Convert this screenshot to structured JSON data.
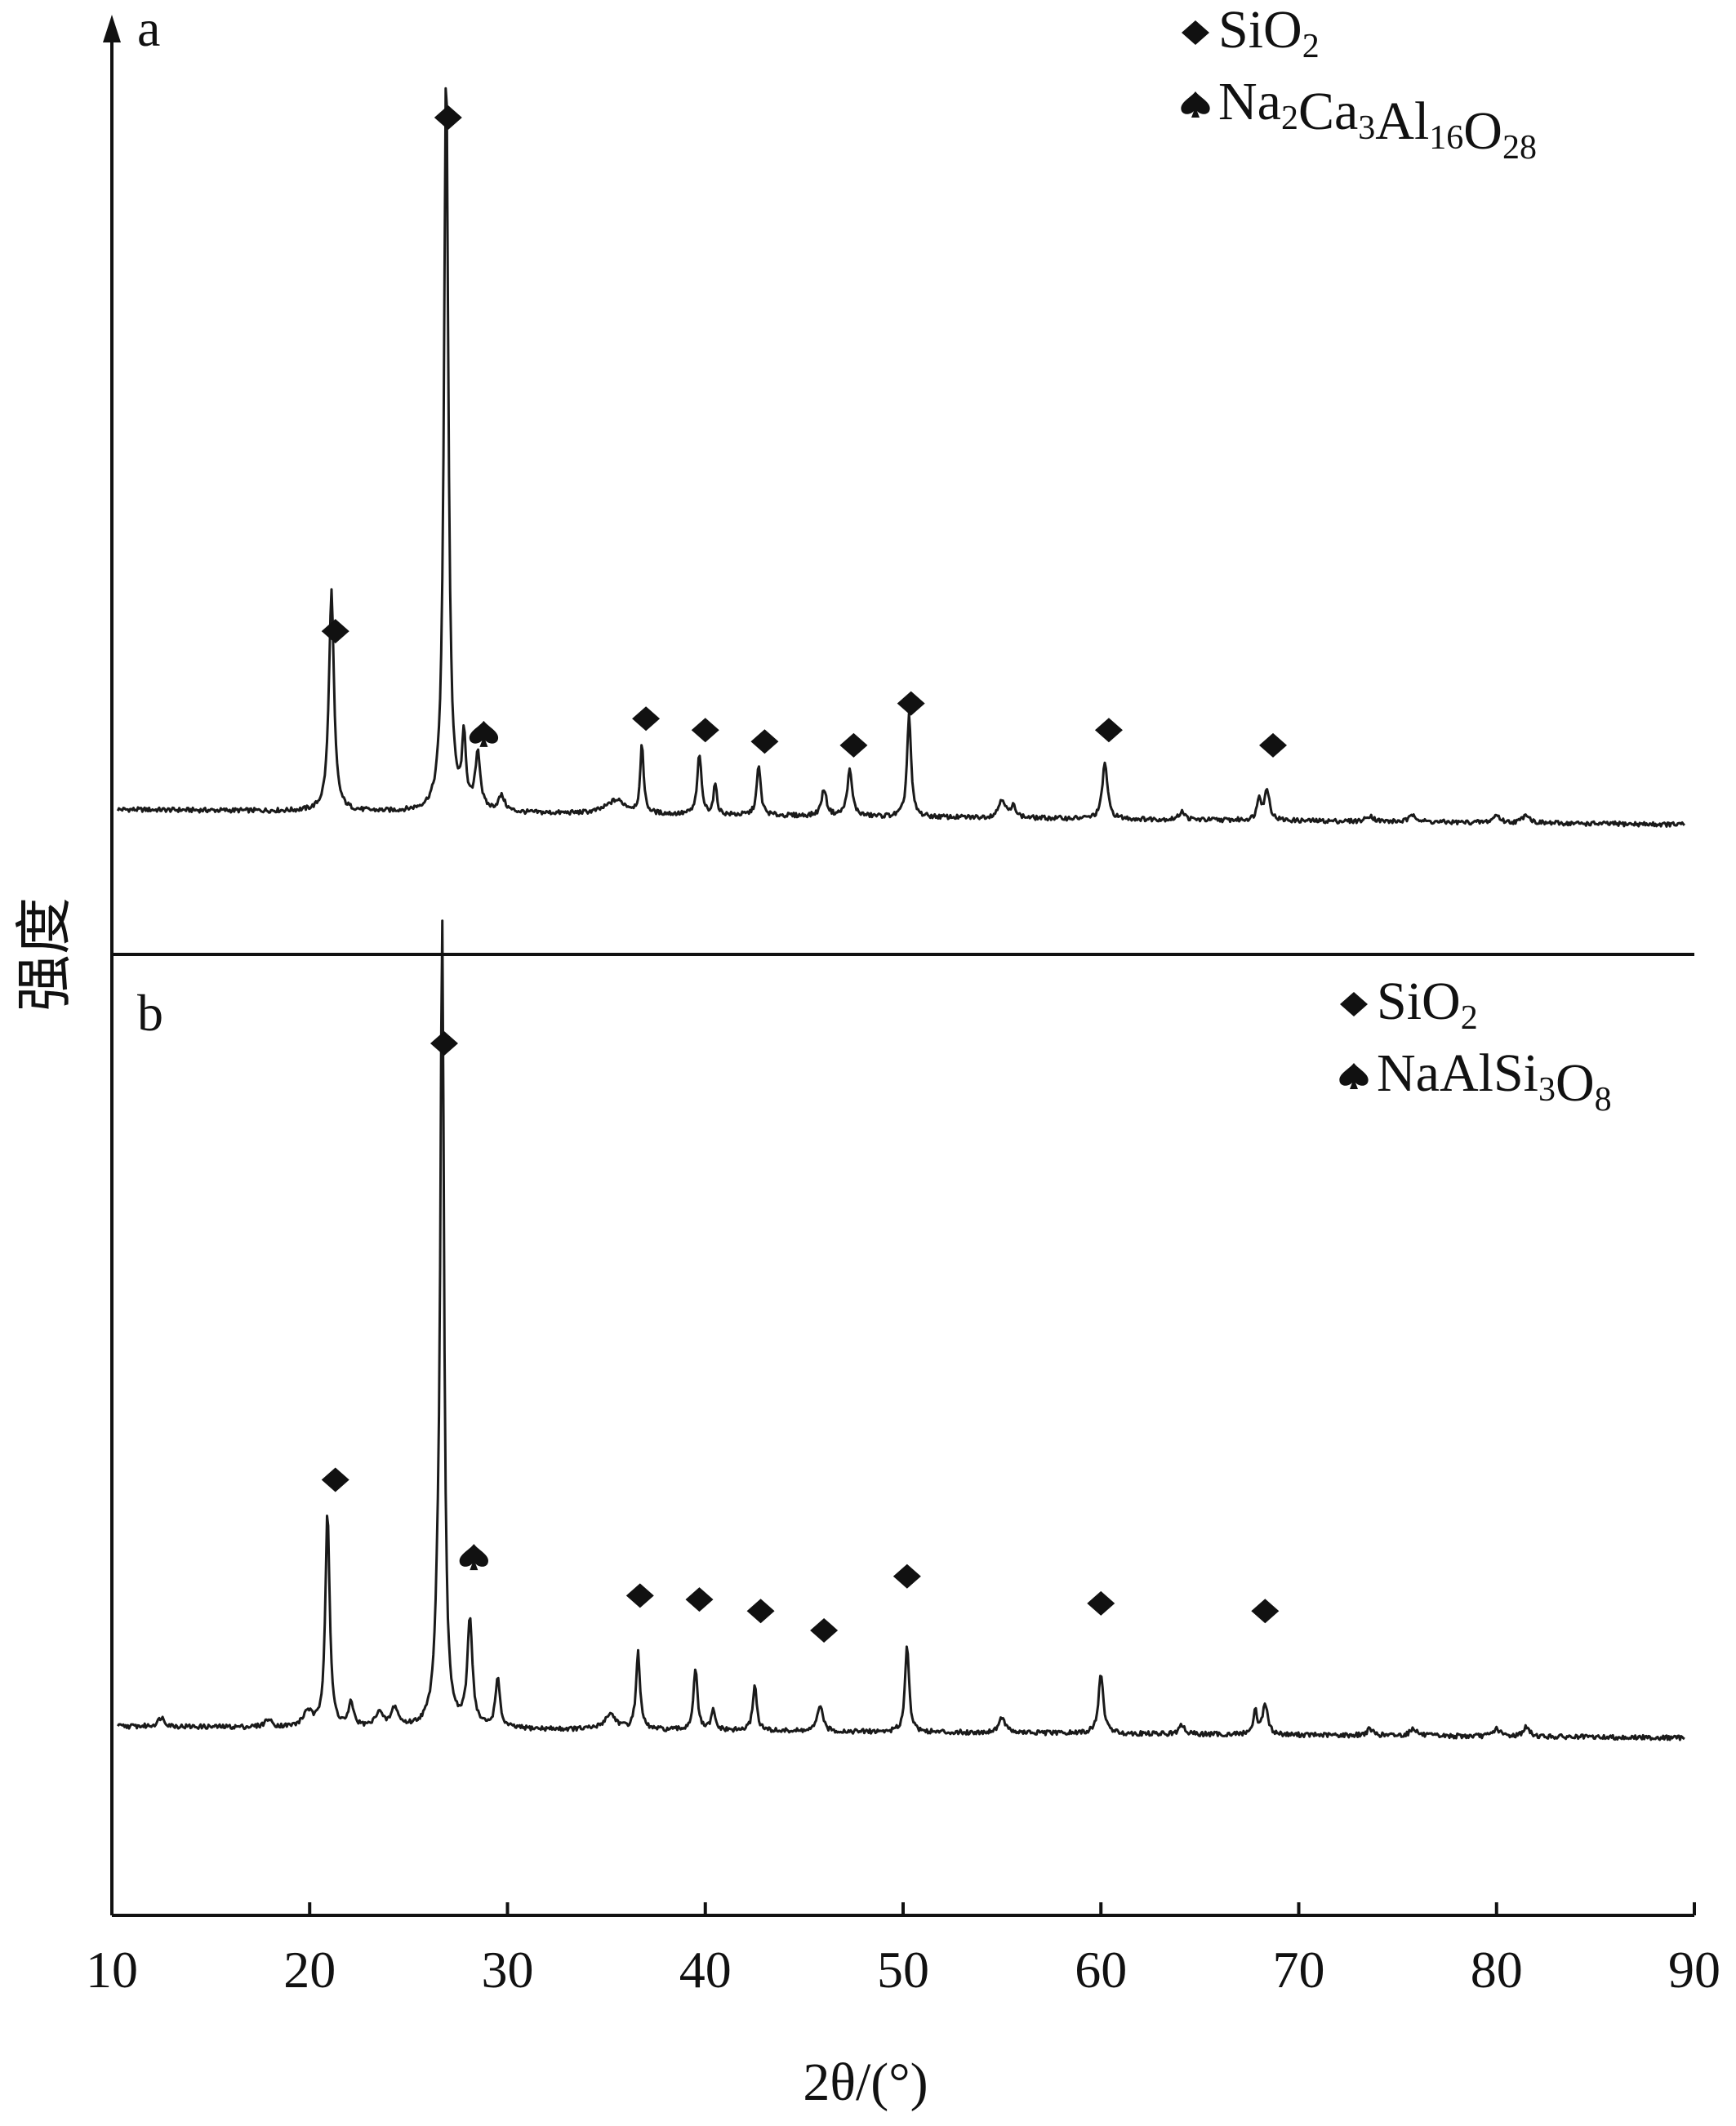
{
  "chart_data": [
    {
      "type": "line",
      "panel_label": "a",
      "xlabel": "2θ/(°)",
      "ylabel": "强度",
      "xlim": [
        10,
        90
      ],
      "xticks": [
        "10",
        "20",
        "30",
        "40",
        "50",
        "60",
        "70",
        "80",
        "90"
      ],
      "ylim": [
        0,
        1
      ],
      "grid": false,
      "legend_position": "top-right",
      "legend": [
        {
          "marker": "diamond",
          "text": "SiO",
          "sub": "2"
        },
        {
          "marker": "spade",
          "parts": [
            [
              "Na",
              ""
            ],
            [
              "",
              "2"
            ],
            [
              "Ca",
              ""
            ],
            [
              "",
              "3"
            ],
            [
              "Al",
              ""
            ],
            [
              "",
              "16"
            ],
            [
              "O",
              ""
            ],
            [
              "",
              "28"
            ]
          ]
        }
      ],
      "baseline_start": 0.095,
      "baseline_end": 0.075,
      "peaks": [
        {
          "x": 21.1,
          "y": 0.29,
          "w": 0.15
        },
        {
          "x": 26.9,
          "y": 0.985,
          "w": 0.13
        },
        {
          "x": 27.8,
          "y": 0.09,
          "w": 0.12
        },
        {
          "x": 28.5,
          "y": 0.075,
          "w": 0.15
        },
        {
          "x": 29.7,
          "y": 0.02,
          "w": 0.2
        },
        {
          "x": 35.5,
          "y": 0.018,
          "w": 0.6
        },
        {
          "x": 36.8,
          "y": 0.09,
          "w": 0.1
        },
        {
          "x": 39.7,
          "y": 0.08,
          "w": 0.12
        },
        {
          "x": 40.5,
          "y": 0.04,
          "w": 0.1
        },
        {
          "x": 42.7,
          "y": 0.065,
          "w": 0.12
        },
        {
          "x": 46.0,
          "y": 0.035,
          "w": 0.15
        },
        {
          "x": 47.3,
          "y": 0.06,
          "w": 0.15
        },
        {
          "x": 50.3,
          "y": 0.135,
          "w": 0.12
        },
        {
          "x": 55.0,
          "y": 0.025,
          "w": 0.2
        },
        {
          "x": 55.6,
          "y": 0.015,
          "w": 0.15
        },
        {
          "x": 60.2,
          "y": 0.075,
          "w": 0.15
        },
        {
          "x": 64.1,
          "y": 0.012,
          "w": 0.15
        },
        {
          "x": 68.0,
          "y": 0.03,
          "w": 0.12
        },
        {
          "x": 68.4,
          "y": 0.04,
          "w": 0.15
        },
        {
          "x": 73.6,
          "y": 0.008,
          "w": 0.2
        },
        {
          "x": 75.8,
          "y": 0.01,
          "w": 0.2
        },
        {
          "x": 80.0,
          "y": 0.01,
          "w": 0.2
        },
        {
          "x": 81.5,
          "y": 0.012,
          "w": 0.2
        }
      ],
      "markers": [
        {
          "x": 21.3,
          "y": 0.325,
          "symbol": "diamond"
        },
        {
          "x": 27.0,
          "y": 1.0,
          "symbol": "diamond"
        },
        {
          "x": 28.8,
          "y": 0.19,
          "symbol": "spade"
        },
        {
          "x": 37.0,
          "y": 0.21,
          "symbol": "diamond"
        },
        {
          "x": 40.0,
          "y": 0.195,
          "symbol": "diamond"
        },
        {
          "x": 43.0,
          "y": 0.18,
          "symbol": "diamond"
        },
        {
          "x": 47.5,
          "y": 0.175,
          "symbol": "diamond"
        },
        {
          "x": 50.4,
          "y": 0.23,
          "symbol": "diamond"
        },
        {
          "x": 60.4,
          "y": 0.195,
          "symbol": "diamond"
        },
        {
          "x": 68.7,
          "y": 0.175,
          "symbol": "diamond"
        }
      ]
    },
    {
      "type": "line",
      "panel_label": "b",
      "xlabel": "2θ/(°)",
      "ylabel": "强度",
      "xlim": [
        10,
        90
      ],
      "xticks": [
        "10",
        "20",
        "30",
        "40",
        "50",
        "60",
        "70",
        "80",
        "90"
      ],
      "ylim": [
        0,
        1
      ],
      "grid": false,
      "legend_position": "top-right",
      "legend": [
        {
          "marker": "diamond",
          "text": "SiO",
          "sub": "2"
        },
        {
          "marker": "spade",
          "parts": [
            [
              "NaAlSi",
              ""
            ],
            [
              "",
              "3"
            ],
            [
              "O",
              ""
            ],
            [
              "",
              "8"
            ]
          ]
        }
      ],
      "baseline_start": 0.12,
      "baseline_end": 0.105,
      "peaks": [
        {
          "x": 12.5,
          "y": 0.012,
          "w": 0.2
        },
        {
          "x": 17.9,
          "y": 0.01,
          "w": 0.2
        },
        {
          "x": 19.9,
          "y": 0.02,
          "w": 0.25
        },
        {
          "x": 20.9,
          "y": 0.28,
          "w": 0.13
        },
        {
          "x": 22.1,
          "y": 0.03,
          "w": 0.15
        },
        {
          "x": 23.5,
          "y": 0.02,
          "w": 0.2
        },
        {
          "x": 24.3,
          "y": 0.025,
          "w": 0.2
        },
        {
          "x": 26.7,
          "y": 1.0,
          "w": 0.11
        },
        {
          "x": 26.5,
          "y": 0.1,
          "w": 0.2
        },
        {
          "x": 28.1,
          "y": 0.14,
          "w": 0.15
        },
        {
          "x": 29.5,
          "y": 0.065,
          "w": 0.13
        },
        {
          "x": 35.2,
          "y": 0.02,
          "w": 0.35
        },
        {
          "x": 36.6,
          "y": 0.1,
          "w": 0.12
        },
        {
          "x": 39.5,
          "y": 0.08,
          "w": 0.12
        },
        {
          "x": 40.4,
          "y": 0.025,
          "w": 0.12
        },
        {
          "x": 42.5,
          "y": 0.06,
          "w": 0.12
        },
        {
          "x": 45.8,
          "y": 0.035,
          "w": 0.15
        },
        {
          "x": 50.2,
          "y": 0.115,
          "w": 0.12
        },
        {
          "x": 55.0,
          "y": 0.02,
          "w": 0.2
        },
        {
          "x": 60.0,
          "y": 0.075,
          "w": 0.15
        },
        {
          "x": 64.1,
          "y": 0.012,
          "w": 0.15
        },
        {
          "x": 67.8,
          "y": 0.03,
          "w": 0.12
        },
        {
          "x": 68.3,
          "y": 0.04,
          "w": 0.15
        },
        {
          "x": 73.6,
          "y": 0.008,
          "w": 0.2
        },
        {
          "x": 75.8,
          "y": 0.01,
          "w": 0.2
        },
        {
          "x": 80.0,
          "y": 0.01,
          "w": 0.2
        },
        {
          "x": 81.5,
          "y": 0.012,
          "w": 0.2
        }
      ],
      "markers": [
        {
          "x": 21.3,
          "y": 0.435,
          "symbol": "diamond"
        },
        {
          "x": 26.8,
          "y": 1.0,
          "symbol": "diamond"
        },
        {
          "x": 28.3,
          "y": 0.335,
          "symbol": "spade"
        },
        {
          "x": 36.7,
          "y": 0.285,
          "symbol": "diamond"
        },
        {
          "x": 39.7,
          "y": 0.28,
          "symbol": "diamond"
        },
        {
          "x": 42.8,
          "y": 0.265,
          "symbol": "diamond"
        },
        {
          "x": 46.0,
          "y": 0.24,
          "symbol": "diamond"
        },
        {
          "x": 50.2,
          "y": 0.31,
          "symbol": "diamond"
        },
        {
          "x": 60.0,
          "y": 0.275,
          "symbol": "diamond"
        },
        {
          "x": 68.3,
          "y": 0.265,
          "symbol": "diamond"
        }
      ]
    }
  ]
}
